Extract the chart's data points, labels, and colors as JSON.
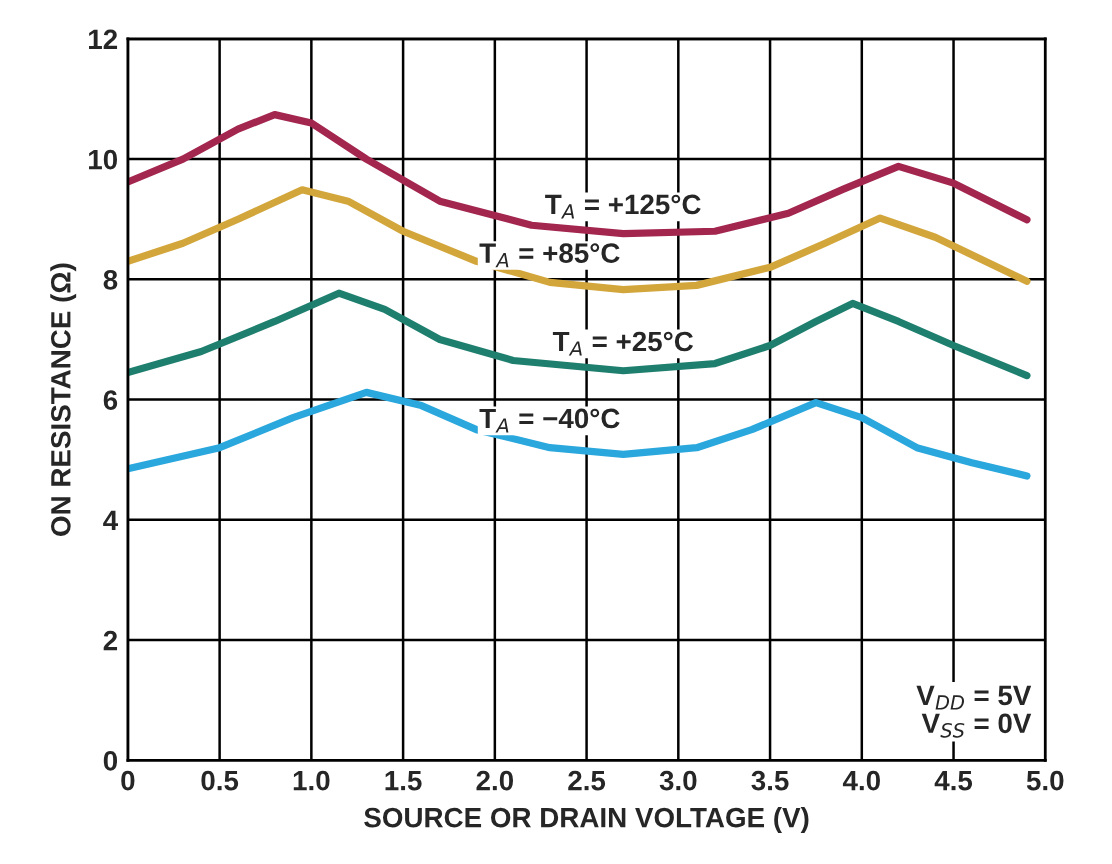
{
  "chart_data": {
    "type": "line",
    "xlabel": "SOURCE OR DRAIN VOLTAGE (V)",
    "ylabel": "ON RESISTANCE (Ω)",
    "xlim": [
      0,
      5
    ],
    "ylim": [
      0,
      12
    ],
    "xticks": [
      0,
      0.5,
      {
        "value": 1,
        "label": "1.0"
      },
      1.5,
      {
        "value": 2,
        "label": "2.0"
      },
      2.5,
      {
        "value": 3,
        "label": "3.0"
      },
      3.5,
      {
        "value": 4,
        "label": "4.0"
      },
      4.5,
      {
        "value": 5,
        "label": "5.0"
      }
    ],
    "yticks": [
      0,
      2,
      4,
      6,
      8,
      10,
      12
    ],
    "grid": true,
    "legend": false,
    "series": [
      {
        "color": "#a3264f",
        "x": [
          0,
          0.3,
          0.6,
          0.8,
          1.0,
          1.3,
          1.7,
          2.2,
          2.7,
          3.2,
          3.6,
          3.9,
          4.2,
          4.5,
          4.9
        ],
        "values": [
          9.62,
          10.0,
          10.5,
          10.74,
          10.6,
          10.0,
          9.3,
          8.9,
          8.76,
          8.8,
          9.1,
          9.5,
          9.88,
          9.6,
          8.99
        ]
      },
      {
        "color": "#d3a63c",
        "x": [
          0,
          0.3,
          0.6,
          0.95,
          1.2,
          1.5,
          1.9,
          2.3,
          2.7,
          3.1,
          3.5,
          3.8,
          4.1,
          4.4,
          4.9
        ],
        "values": [
          8.3,
          8.6,
          9.0,
          9.49,
          9.3,
          8.8,
          8.3,
          7.95,
          7.83,
          7.9,
          8.2,
          8.6,
          9.02,
          8.7,
          7.97
        ]
      },
      {
        "color": "#1f7f6f",
        "x": [
          0,
          0.4,
          0.8,
          1.15,
          1.4,
          1.7,
          2.1,
          2.7,
          3.2,
          3.5,
          3.75,
          3.95,
          4.2,
          4.5,
          4.9
        ],
        "values": [
          6.45,
          6.8,
          7.3,
          7.77,
          7.5,
          7.0,
          6.65,
          6.48,
          6.6,
          6.9,
          7.3,
          7.6,
          7.3,
          6.9,
          6.4
        ]
      },
      {
        "color": "#2aa7dc",
        "x": [
          0,
          0.5,
          0.9,
          1.3,
          1.6,
          1.9,
          2.3,
          2.7,
          3.1,
          3.4,
          3.75,
          4.0,
          4.3,
          4.6,
          4.9
        ],
        "values": [
          4.85,
          5.2,
          5.7,
          6.12,
          5.9,
          5.5,
          5.2,
          5.09,
          5.2,
          5.5,
          5.95,
          5.7,
          5.2,
          4.95,
          4.73
        ]
      }
    ],
    "annotations": [
      "T$_{A}$ = +125°C",
      "T$_{A}$ = +85°C",
      "T$_{A}$ = +25°C",
      "T$_{A}$ = −40°C",
      "V$_{DD}$ = 5V\nV$_{SS}$ = 0V"
    ]
  }
}
